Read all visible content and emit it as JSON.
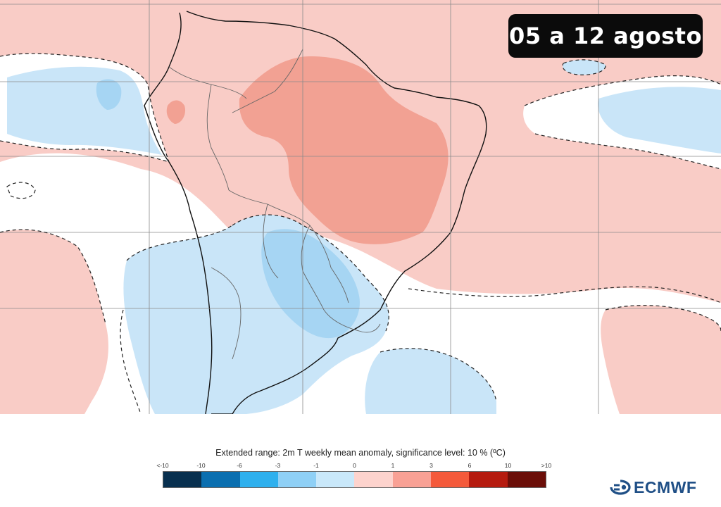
{
  "map": {
    "period_label": "05 a 12 agosto",
    "region": "South America",
    "variable": "2m temperature weekly mean anomaly",
    "colors": {
      "warm_weak": "#f9ccc6",
      "warm_moderate": "#f2a193",
      "cold_weak": "#c9e5f8",
      "cold_moderate": "#a6d5f3",
      "neutral": "#ffffff",
      "coast": "#111111",
      "grid": "#8a8a8a",
      "border": "#666666"
    }
  },
  "legend": {
    "title": "Extended range: 2m T weekly mean anomaly, significance level: 10 % (ºC)",
    "tick_labels": [
      "<-10",
      "-10",
      "-6",
      "-3",
      "-1",
      "0",
      "1",
      "3",
      "6",
      "10",
      ">10"
    ],
    "colors": [
      "#08304f",
      "#0a6fb0",
      "#2eb0ee",
      "#8fd0f6",
      "#c9e8fa",
      "#fdd3cd",
      "#f9a195",
      "#f45a3b",
      "#b51b0f",
      "#6b0e08"
    ]
  },
  "logo": {
    "text": "ECMWF",
    "icon": "ecmwf-logo-icon"
  }
}
